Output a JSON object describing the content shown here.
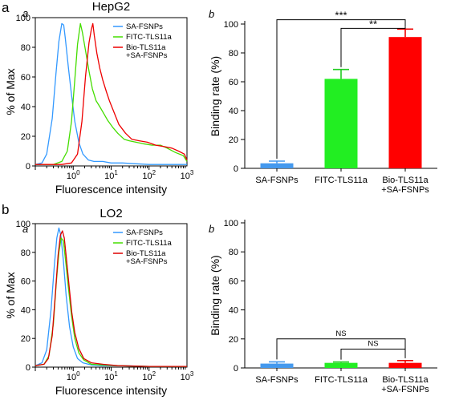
{
  "panel_labels": {
    "a": "a",
    "b": "b"
  },
  "sub_labels": {
    "hist": "a",
    "bar": "b"
  },
  "chart_data": [
    {
      "id": "hepg2-hist",
      "type": "line",
      "title": "HepG2",
      "xlabel": "Fluorescence intensity",
      "ylabel": "% of Max",
      "xscale": "log",
      "xlim": [
        0.1,
        1000
      ],
      "ylim": [
        0,
        100
      ],
      "yticks": [
        "0",
        "20",
        "40",
        "60",
        "80",
        "100"
      ],
      "xticks": [
        {
          "value": 1,
          "base": "10",
          "exp": "0"
        },
        {
          "value": 10,
          "base": "10",
          "exp": "1"
        },
        {
          "value": 100,
          "base": "10",
          "exp": "2"
        },
        {
          "value": 1000,
          "base": "10",
          "exp": "3"
        }
      ],
      "legend_position": "top-right",
      "series": [
        {
          "name": "SA-FSNPs",
          "color": "#3399ff",
          "points": [
            [
              0.1,
              1
            ],
            [
              0.15,
              2
            ],
            [
              0.2,
              8
            ],
            [
              0.28,
              32
            ],
            [
              0.35,
              62
            ],
            [
              0.42,
              84
            ],
            [
              0.5,
              96
            ],
            [
              0.56,
              95
            ],
            [
              0.62,
              86
            ],
            [
              0.75,
              66
            ],
            [
              0.9,
              48
            ],
            [
              1.1,
              30
            ],
            [
              1.4,
              16
            ],
            [
              1.8,
              8
            ],
            [
              2.5,
              4
            ],
            [
              3.5,
              3
            ],
            [
              6,
              3
            ],
            [
              10,
              2
            ],
            [
              20,
              2
            ],
            [
              40,
              1.5
            ],
            [
              100,
              1
            ],
            [
              300,
              1
            ],
            [
              1000,
              1
            ]
          ]
        },
        {
          "name": "FITC-TLS11a",
          "color": "#44dd00",
          "points": [
            [
              0.1,
              1
            ],
            [
              0.3,
              1
            ],
            [
              0.5,
              3
            ],
            [
              0.7,
              10
            ],
            [
              0.9,
              30
            ],
            [
              1.1,
              58
            ],
            [
              1.3,
              82
            ],
            [
              1.55,
              96
            ],
            [
              1.75,
              90
            ],
            [
              2.1,
              78
            ],
            [
              2.6,
              64
            ],
            [
              3.2,
              52
            ],
            [
              4,
              44
            ],
            [
              5,
              40
            ],
            [
              6.5,
              35
            ],
            [
              8,
              31
            ],
            [
              11,
              26
            ],
            [
              15,
              22
            ],
            [
              22,
              18
            ],
            [
              30,
              17
            ],
            [
              45,
              16
            ],
            [
              70,
              15
            ],
            [
              120,
              14
            ],
            [
              200,
              14
            ],
            [
              300,
              12
            ],
            [
              500,
              9
            ],
            [
              800,
              7
            ],
            [
              1000,
              3
            ]
          ]
        },
        {
          "name": "Bio-TLS11a\n+SA-FSNPs",
          "color": "#ee0000",
          "points": [
            [
              0.1,
              1
            ],
            [
              0.5,
              1
            ],
            [
              0.9,
              2
            ],
            [
              1.3,
              8
            ],
            [
              1.7,
              30
            ],
            [
              2.1,
              60
            ],
            [
              2.6,
              83
            ],
            [
              3,
              92
            ],
            [
              3.3,
              96
            ],
            [
              3.6,
              88
            ],
            [
              4.2,
              76
            ],
            [
              5,
              66
            ],
            [
              6,
              58
            ],
            [
              7.5,
              50
            ],
            [
              9,
              44
            ],
            [
              12,
              36
            ],
            [
              16,
              28
            ],
            [
              24,
              22
            ],
            [
              35,
              18
            ],
            [
              55,
              17
            ],
            [
              90,
              16
            ],
            [
              150,
              14
            ],
            [
              250,
              13
            ],
            [
              400,
              12
            ],
            [
              600,
              10
            ],
            [
              850,
              8
            ],
            [
              1000,
              4
            ]
          ]
        }
      ]
    },
    {
      "id": "hepg2-bar",
      "type": "bar",
      "ylabel": "Binding rate (%)",
      "ylim": [
        0,
        100
      ],
      "yticks": [
        "0",
        "20",
        "40",
        "60",
        "80",
        "100"
      ],
      "categories": [
        "SA-FSNPs",
        "FITC-TLS11a",
        "Bio-TLS11a\n+SA-FSNPs"
      ],
      "values": [
        3.5,
        62,
        91
      ],
      "errors": [
        1.5,
        6.5,
        5.5
      ],
      "colors": [
        "#4499ee",
        "#22ee22",
        "#ff0000"
      ],
      "error_colors": [
        "#4499ee",
        "#22cc22",
        "#ee0000"
      ],
      "significance": [
        {
          "from": 0,
          "to": 2,
          "label": "***",
          "y": 103
        },
        {
          "from": 1,
          "to": 2,
          "label": "**",
          "y": 97
        }
      ]
    },
    {
      "id": "lo2-hist",
      "type": "line",
      "title": "LO2",
      "xlabel": "Fluorescence intensity",
      "ylabel": "% of Max",
      "xscale": "log",
      "xlim": [
        0.1,
        1000
      ],
      "ylim": [
        0,
        100
      ],
      "yticks": [
        "0",
        "20",
        "40",
        "60",
        "80",
        "100"
      ],
      "xticks": [
        {
          "value": 1,
          "base": "10",
          "exp": "0"
        },
        {
          "value": 10,
          "base": "10",
          "exp": "1"
        },
        {
          "value": 100,
          "base": "10",
          "exp": "2"
        },
        {
          "value": 1000,
          "base": "10",
          "exp": "3"
        }
      ],
      "legend_position": "top-right",
      "series": [
        {
          "name": "SA-FSNPs",
          "color": "#3399ff",
          "points": [
            [
              0.1,
              1
            ],
            [
              0.15,
              3
            ],
            [
              0.2,
              12
            ],
            [
              0.26,
              40
            ],
            [
              0.32,
              72
            ],
            [
              0.37,
              90
            ],
            [
              0.42,
              97
            ],
            [
              0.47,
              92
            ],
            [
              0.55,
              74
            ],
            [
              0.65,
              50
            ],
            [
              0.8,
              28
            ],
            [
              1,
              14
            ],
            [
              1.3,
              6
            ],
            [
              1.8,
              3
            ],
            [
              3,
              1.5
            ],
            [
              6,
              1
            ],
            [
              20,
              1
            ],
            [
              100,
              0.5
            ],
            [
              1000,
              0.5
            ]
          ]
        },
        {
          "name": "FITC-TLS11a",
          "color": "#44dd00",
          "points": [
            [
              0.1,
              1
            ],
            [
              0.17,
              2
            ],
            [
              0.23,
              8
            ],
            [
              0.3,
              30
            ],
            [
              0.36,
              60
            ],
            [
              0.42,
              80
            ],
            [
              0.48,
              90
            ],
            [
              0.55,
              88
            ],
            [
              0.63,
              74
            ],
            [
              0.75,
              55
            ],
            [
              0.9,
              36
            ],
            [
              1.1,
              20
            ],
            [
              1.4,
              10
            ],
            [
              1.9,
              5
            ],
            [
              3,
              2
            ],
            [
              6,
              1.5
            ],
            [
              15,
              1
            ],
            [
              100,
              0.5
            ],
            [
              1000,
              0.5
            ]
          ]
        },
        {
          "name": "Bio-TLS11a\n+SA-FSNPs",
          "color": "#dd0000",
          "points": [
            [
              0.1,
              1
            ],
            [
              0.17,
              2
            ],
            [
              0.22,
              6
            ],
            [
              0.28,
              22
            ],
            [
              0.34,
              52
            ],
            [
              0.4,
              78
            ],
            [
              0.46,
              92
            ],
            [
              0.52,
              95
            ],
            [
              0.58,
              90
            ],
            [
              0.66,
              76
            ],
            [
              0.78,
              56
            ],
            [
              0.92,
              38
            ],
            [
              1.1,
              24
            ],
            [
              1.4,
              13
            ],
            [
              1.9,
              6
            ],
            [
              3,
              3
            ],
            [
              6,
              2
            ],
            [
              15,
              1
            ],
            [
              100,
              0.5
            ],
            [
              1000,
              0.5
            ]
          ]
        }
      ]
    },
    {
      "id": "lo2-bar",
      "type": "bar",
      "ylabel": "Binding rate (%)",
      "ylim": [
        0,
        100
      ],
      "yticks": [
        "0",
        "20",
        "40",
        "60",
        "80",
        "100"
      ],
      "categories": [
        "SA-FSNPs",
        "FITC-TLS11a",
        "Bio-TLS11a\n+SA-FSNPs"
      ],
      "values": [
        3,
        3.5,
        3.5
      ],
      "errors": [
        1.2,
        0.6,
        1.6
      ],
      "colors": [
        "#4499ee",
        "#22ee22",
        "#ff0000"
      ],
      "error_colors": [
        "#4499ee",
        "#22cc22",
        "#ee0000"
      ],
      "significance": [
        {
          "from": 0,
          "to": 2,
          "label": "NS",
          "y": 20
        },
        {
          "from": 1,
          "to": 2,
          "label": "NS",
          "y": 13
        }
      ]
    }
  ]
}
